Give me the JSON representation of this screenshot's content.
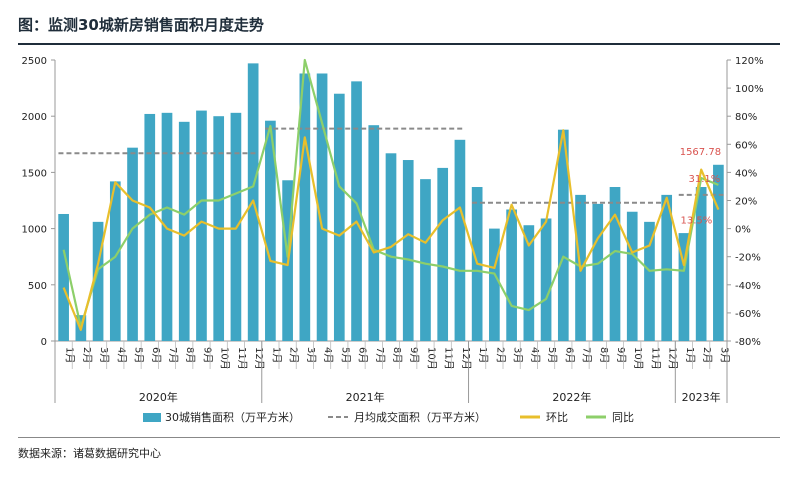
{
  "title": "图：监测30城新房销售面积月度走势",
  "source": "数据来源：诸葛数据研究中心",
  "colors": {
    "bar": "#3fa6c4",
    "hb": "#e8bf2c",
    "tb": "#8dcf6a",
    "avg": "#8a8a8a",
    "annot": "#d9534f"
  },
  "chart_data": {
    "type": "bar",
    "months": [
      "1月",
      "2月",
      "3月",
      "4月",
      "5月",
      "6月",
      "7月",
      "8月",
      "9月",
      "10月",
      "11月",
      "12月",
      "1月",
      "2月",
      "3月",
      "4月",
      "5月",
      "6月",
      "7月",
      "8月",
      "9月",
      "10月",
      "11月",
      "12月",
      "1月",
      "2月",
      "3月",
      "4月",
      "5月",
      "6月",
      "7月",
      "8月",
      "9月",
      "10月",
      "11月",
      "12月",
      "1月",
      "2月",
      "3月"
    ],
    "years": [
      {
        "label": "2020年",
        "start": 0,
        "count": 12
      },
      {
        "label": "2021年",
        "start": 12,
        "count": 12
      },
      {
        "label": "2022年",
        "start": 24,
        "count": 12
      },
      {
        "label": "2023年",
        "start": 36,
        "count": 3
      }
    ],
    "y_left": {
      "min": 0,
      "max": 2500,
      "ticks": [
        0,
        500,
        1000,
        1500,
        2000,
        2500
      ]
    },
    "y_right": {
      "min": -80,
      "max": 120,
      "ticks": [
        "-80%",
        "-60%",
        "-40%",
        "-20%",
        "0%",
        "20%",
        "40%",
        "60%",
        "80%",
        "100%",
        "120%"
      ]
    },
    "series": [
      {
        "name": "30城销售面积（万平方米）",
        "type": "bar",
        "axis": "left",
        "values": [
          1130,
          230,
          1060,
          1420,
          1720,
          2020,
          2030,
          1950,
          2050,
          2000,
          2030,
          2470,
          1960,
          1430,
          2380,
          2380,
          2200,
          2310,
          1920,
          1670,
          1610,
          1440,
          1540,
          1790,
          1370,
          1000,
          1170,
          1030,
          1090,
          1880,
          1300,
          1220,
          1370,
          1150,
          1060,
          1300,
          960,
          1370,
          1567.78
        ]
      },
      {
        "name": "月均成交面积（万平方米）",
        "type": "avg",
        "axis": "left",
        "segments": [
          {
            "start": 0,
            "end": 11,
            "value": 1670
          },
          {
            "start": 12,
            "end": 23,
            "value": 1890
          },
          {
            "start": 24,
            "end": 35,
            "value": 1230
          },
          {
            "start": 36,
            "end": 38,
            "value": 1300
          }
        ]
      },
      {
        "name": "环比",
        "type": "line",
        "axis": "right",
        "values": [
          -42,
          -72,
          -25,
          33,
          20,
          15,
          0,
          -5,
          5,
          0,
          0,
          20,
          -23,
          -26,
          65,
          0,
          -5,
          5,
          -17,
          -13,
          -4,
          -10,
          6,
          15,
          -25,
          -28,
          17,
          -12,
          5,
          70,
          -30,
          -7,
          10,
          -17,
          -12,
          22,
          -26,
          42,
          13.5
        ]
      },
      {
        "name": "同比",
        "type": "line",
        "axis": "right",
        "values": [
          -15,
          -70,
          -29,
          -20,
          0,
          10,
          15,
          10,
          20,
          20,
          25,
          30,
          73,
          -20,
          120,
          75,
          30,
          18,
          -15,
          -20,
          -22,
          -25,
          -27,
          -30,
          -30,
          -32,
          -55,
          -58,
          -50,
          -20,
          -27,
          -25,
          -16,
          -18,
          -30,
          -29,
          -30,
          36,
          31.1
        ]
      }
    ],
    "annotations": [
      {
        "text": "1567.78",
        "series": 0,
        "index": 38,
        "dx": -18,
        "dy": -10,
        "color": "#d9534f"
      },
      {
        "text": "31.1%",
        "series": 3,
        "index": 38,
        "dx": -14,
        "dy": -3,
        "color": "#d9534f"
      },
      {
        "text": "13.5%",
        "series": 2,
        "index": 38,
        "dx": -22,
        "dy": 14,
        "color": "#d9534f"
      }
    ]
  }
}
